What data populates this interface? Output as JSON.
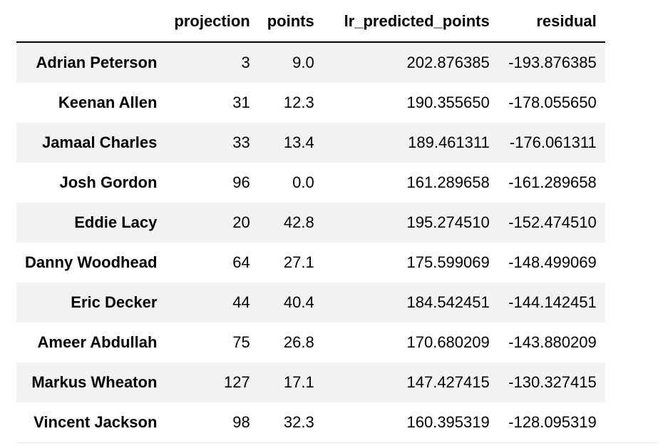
{
  "table": {
    "columns": [
      "",
      "projection",
      "points",
      "lr_predicted_points",
      "residual"
    ],
    "rows": [
      {
        "name": "Adrian Peterson",
        "projection": "3",
        "points": "9.0",
        "lr_predicted_points": "202.876385",
        "residual": "-193.876385"
      },
      {
        "name": "Keenan Allen",
        "projection": "31",
        "points": "12.3",
        "lr_predicted_points": "190.355650",
        "residual": "-178.055650"
      },
      {
        "name": "Jamaal Charles",
        "projection": "33",
        "points": "13.4",
        "lr_predicted_points": "189.461311",
        "residual": "-176.061311"
      },
      {
        "name": "Josh Gordon",
        "projection": "96",
        "points": "0.0",
        "lr_predicted_points": "161.289658",
        "residual": "-161.289658"
      },
      {
        "name": "Eddie Lacy",
        "projection": "20",
        "points": "42.8",
        "lr_predicted_points": "195.274510",
        "residual": "-152.474510"
      },
      {
        "name": "Danny Woodhead",
        "projection": "64",
        "points": "27.1",
        "lr_predicted_points": "175.599069",
        "residual": "-148.499069"
      },
      {
        "name": "Eric Decker",
        "projection": "44",
        "points": "40.4",
        "lr_predicted_points": "184.542451",
        "residual": "-144.142451"
      },
      {
        "name": "Ameer Abdullah",
        "projection": "75",
        "points": "26.8",
        "lr_predicted_points": "170.680209",
        "residual": "-143.880209"
      },
      {
        "name": "Markus Wheaton",
        "projection": "127",
        "points": "17.1",
        "lr_predicted_points": "147.427415",
        "residual": "-130.327415"
      },
      {
        "name": "Vincent Jackson",
        "projection": "98",
        "points": "32.3",
        "lr_predicted_points": "160.395319",
        "residual": "-128.095319"
      }
    ]
  },
  "colors": {
    "striped_row": "#f2f2f2",
    "header_rule": "#000000",
    "text": "#000000"
  }
}
